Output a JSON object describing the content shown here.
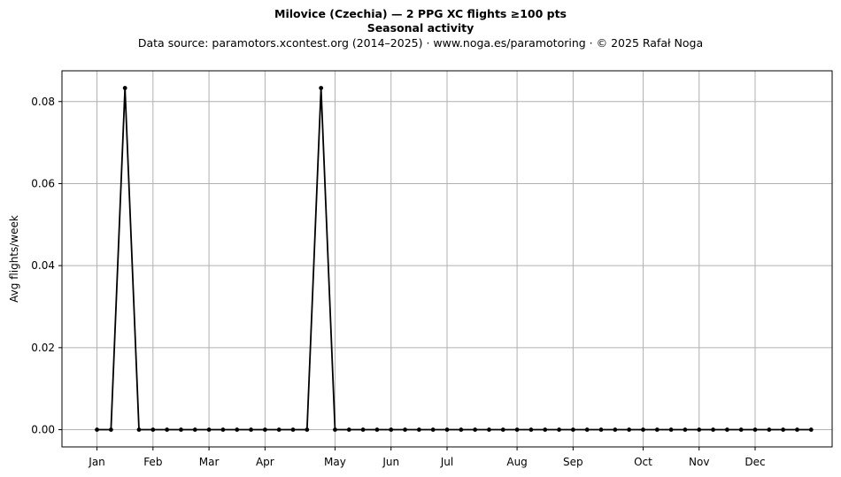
{
  "chart_data": {
    "type": "line",
    "title": "Milovice (Czechia)  —  2 PPG XC flights ≥100 pts",
    "title2": "Seasonal activity",
    "subtitle": "Data source: paramotors.xcontest.org (2014–2025)  ·  www.noga.es/paramotoring  ·  © 2025 Rafał Noga",
    "xlabel": "",
    "ylabel": "Avg flights/week",
    "ylim": [
      -0.0042,
      0.0875
    ],
    "yticks": [
      0.0,
      0.02,
      0.04,
      0.06,
      0.08
    ],
    "ytick_labels": [
      "0.00",
      "0.02",
      "0.04",
      "0.06",
      "0.08"
    ],
    "xlim": [
      -2.5,
      52.5
    ],
    "xticks": [
      0,
      4,
      8,
      12,
      17,
      21,
      25,
      30,
      34,
      39,
      43,
      47
    ],
    "xtick_labels": [
      "Jan",
      "Feb",
      "Mar",
      "Apr",
      "May",
      "Jun",
      "Jul",
      "Aug",
      "Sep",
      "Oct",
      "Nov",
      "Dec"
    ],
    "grid": true,
    "legend": "none",
    "line_color": "#000000",
    "grid_color": "#b0b0b0",
    "x": [
      0,
      1,
      2,
      3,
      4,
      5,
      6,
      7,
      8,
      9,
      10,
      11,
      12,
      13,
      14,
      15,
      16,
      17,
      18,
      19,
      20,
      21,
      22,
      23,
      24,
      25,
      26,
      27,
      28,
      29,
      30,
      31,
      32,
      33,
      34,
      35,
      36,
      37,
      38,
      39,
      40,
      41,
      42,
      43,
      44,
      45,
      46,
      47,
      48,
      49,
      50,
      51
    ],
    "values": [
      0,
      0,
      0.0833,
      0,
      0,
      0,
      0,
      0,
      0,
      0,
      0,
      0,
      0,
      0,
      0,
      0,
      0.0833,
      0,
      0,
      0,
      0,
      0,
      0,
      0,
      0,
      0,
      0,
      0,
      0,
      0,
      0,
      0,
      0,
      0,
      0,
      0,
      0,
      0,
      0,
      0,
      0,
      0,
      0,
      0,
      0,
      0,
      0,
      0,
      0,
      0,
      0,
      0
    ]
  }
}
